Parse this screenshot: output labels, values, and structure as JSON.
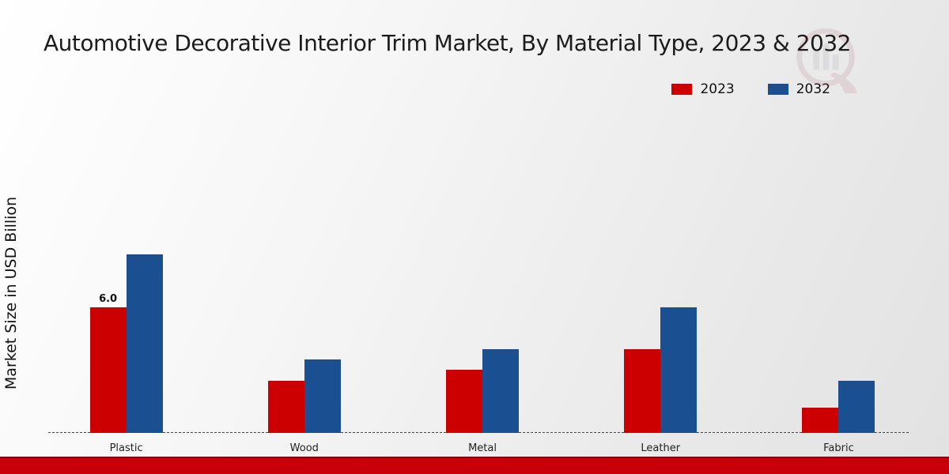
{
  "chart_data": {
    "type": "bar",
    "title": "Automotive Decorative Interior Trim Market, By Material Type, 2023 & 2032",
    "xlabel": "",
    "ylabel": "Market Size in USD Billion",
    "categories": [
      "Plastic",
      "Wood",
      "Metal",
      "Leather",
      "Fabric"
    ],
    "series": [
      {
        "name": "2023",
        "color": "#cc0001",
        "values": [
          6.0,
          2.5,
          3.0,
          4.0,
          1.2
        ]
      },
      {
        "name": "2032",
        "color": "#1a5091",
        "values": [
          8.5,
          3.5,
          4.0,
          6.0,
          2.5
        ]
      }
    ],
    "ylim": [
      0,
      15
    ],
    "grid": false,
    "legend_position": "top-right",
    "baseline_style": "dashed",
    "annotations": [
      {
        "category": "Plastic",
        "series": "2023",
        "text": "6.0"
      }
    ]
  },
  "legend": {
    "items": [
      {
        "label": "2023",
        "color": "#cc0001"
      },
      {
        "label": "2032",
        "color": "#1a5091"
      }
    ]
  },
  "footer": {
    "bar_color": "#c9000a"
  },
  "watermark": {
    "name": "market-research-logo"
  }
}
